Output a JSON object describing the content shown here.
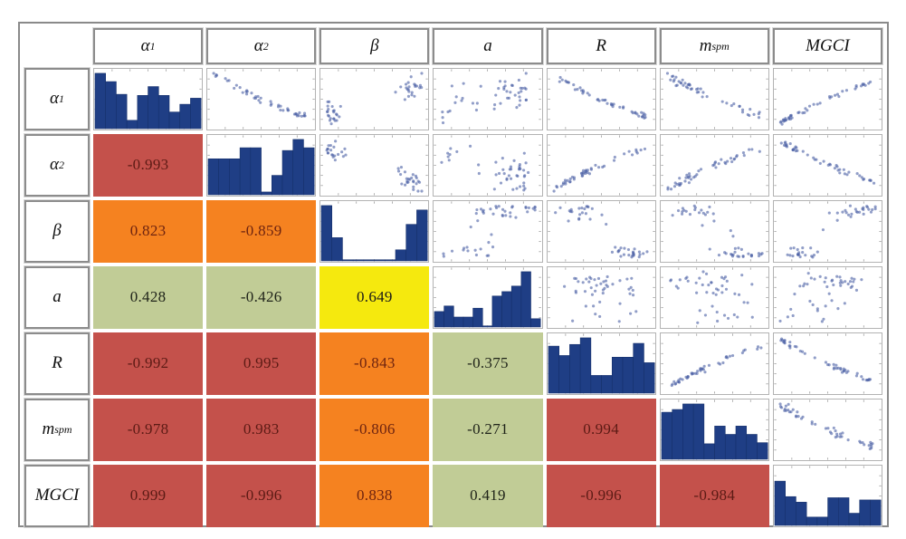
{
  "figure": {
    "kind": "correlation-scatterplot-matrix-figure",
    "background": "#ffffff"
  },
  "chart_data": {
    "type": "scatter",
    "subtype": "scatterplot-matrix",
    "layout": {
      "diagonal": "histograms",
      "upper_triangle": "pairwise-scatterplots",
      "lower_triangle": "correlation-coefficients",
      "grid": "off",
      "axis_ticks": "small-edge-ticks-no-labels"
    },
    "variables": [
      {
        "id": "alpha1",
        "base": "α",
        "sub": "1"
      },
      {
        "id": "alpha2",
        "base": "α",
        "sub": "2"
      },
      {
        "id": "beta",
        "base": "β",
        "sub": ""
      },
      {
        "id": "a",
        "base": "a",
        "sub": ""
      },
      {
        "id": "R",
        "base": "R",
        "sub": ""
      },
      {
        "id": "mspm",
        "base": "m",
        "sub": "spm"
      },
      {
        "id": "MGCI",
        "base": "MGCI",
        "sub": ""
      }
    ],
    "correlations": [
      {
        "row": "alpha2",
        "col": "alpha1",
        "value": -0.993,
        "display": "-0.993"
      },
      {
        "row": "beta",
        "col": "alpha1",
        "value": 0.823,
        "display": "0.823"
      },
      {
        "row": "beta",
        "col": "alpha2",
        "value": -0.859,
        "display": "-0.859"
      },
      {
        "row": "a",
        "col": "alpha1",
        "value": 0.428,
        "display": "0.428"
      },
      {
        "row": "a",
        "col": "alpha2",
        "value": -0.426,
        "display": "-0.426"
      },
      {
        "row": "a",
        "col": "beta",
        "value": 0.649,
        "display": "0.649"
      },
      {
        "row": "R",
        "col": "alpha1",
        "value": -0.992,
        "display": "-0.992"
      },
      {
        "row": "R",
        "col": "alpha2",
        "value": 0.995,
        "display": "0.995"
      },
      {
        "row": "R",
        "col": "beta",
        "value": -0.843,
        "display": "-0.843"
      },
      {
        "row": "R",
        "col": "a",
        "value": -0.375,
        "display": "-0.375"
      },
      {
        "row": "mspm",
        "col": "alpha1",
        "value": -0.978,
        "display": "-0.978"
      },
      {
        "row": "mspm",
        "col": "alpha2",
        "value": 0.983,
        "display": "0.983"
      },
      {
        "row": "mspm",
        "col": "beta",
        "value": -0.806,
        "display": "-0.806"
      },
      {
        "row": "mspm",
        "col": "a",
        "value": -0.271,
        "display": "-0.271"
      },
      {
        "row": "mspm",
        "col": "R",
        "value": 0.994,
        "display": "0.994"
      },
      {
        "row": "MGCI",
        "col": "alpha1",
        "value": 0.999,
        "display": "0.999"
      },
      {
        "row": "MGCI",
        "col": "alpha2",
        "value": -0.996,
        "display": "-0.996"
      },
      {
        "row": "MGCI",
        "col": "beta",
        "value": 0.838,
        "display": "0.838"
      },
      {
        "row": "MGCI",
        "col": "a",
        "value": 0.419,
        "display": "0.419"
      },
      {
        "row": "MGCI",
        "col": "R",
        "value": -0.996,
        "display": "-0.996"
      },
      {
        "row": "MGCI",
        "col": "mspm",
        "value": -0.984,
        "display": "-0.984"
      }
    ],
    "histograms": {
      "alpha1": [
        1.0,
        0.85,
        0.62,
        0.15,
        0.6,
        0.76,
        0.6,
        0.3,
        0.44,
        0.55
      ],
      "alpha2": [
        0.65,
        0.65,
        0.65,
        0.85,
        0.85,
        0.05,
        0.35,
        0.8,
        1.0,
        0.85
      ],
      "beta": [
        1.0,
        0.42,
        0.02,
        0.02,
        0.02,
        0.02,
        0.02,
        0.2,
        0.66,
        0.92
      ],
      "a": [
        0.28,
        0.38,
        0.18,
        0.18,
        0.34,
        0.02,
        0.56,
        0.64,
        0.74,
        1.0,
        0.15
      ],
      "R": [
        0.85,
        0.68,
        0.88,
        1.0,
        0.32,
        0.32,
        0.65,
        0.65,
        0.9,
        0.55
      ],
      "mspm": [
        0.85,
        0.9,
        1.0,
        1.0,
        0.28,
        0.6,
        0.45,
        0.6,
        0.45,
        0.3
      ],
      "MGCI": [
        0.8,
        0.52,
        0.42,
        0.15,
        0.15,
        0.5,
        0.5,
        0.22,
        0.46,
        0.46
      ]
    },
    "points_per_scatter": 46
  },
  "colors": {
    "histogram_bar": "#1f3e85",
    "histogram_bar_edge": "#16306b",
    "scatter_dot": "#4e63a6",
    "panel_border": "#b3b3b3",
    "outer_border": "#8a8a8a",
    "tick": "#9a9a9a",
    "correlation_bins": [
      {
        "min_abs": 0.9,
        "bg": "#c4514b",
        "text": "#5c1b15",
        "label": "very-strong"
      },
      {
        "min_abs": 0.8,
        "bg": "#f58220",
        "text": "#6e2410",
        "label": "strong"
      },
      {
        "min_abs": 0.6,
        "bg": "#f5e90e",
        "text": "#1a1a1a",
        "label": "moderate"
      },
      {
        "min_abs": 0.0,
        "bg": "#c1cc96",
        "text": "#20241a",
        "label": "weak"
      }
    ]
  }
}
